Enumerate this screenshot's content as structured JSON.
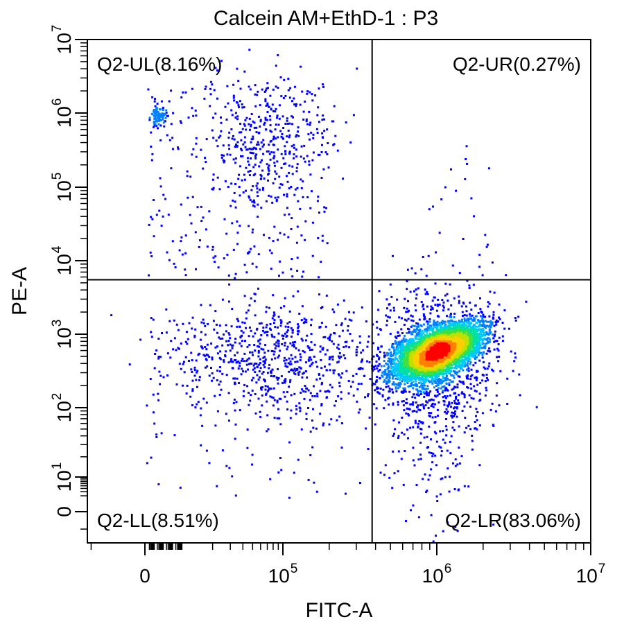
{
  "chart_data": {
    "type": "scatter",
    "title": "Calcein AM+EthD-1 : P3",
    "xlabel": "FITC-A",
    "ylabel": "PE-A",
    "x_scale": "biexponential",
    "y_scale": "biexponential",
    "xlim": [
      -40000,
      10000000
    ],
    "ylim": [
      -0.6,
      10000000
    ],
    "x_ticks": [
      {
        "value": 0,
        "base": "0",
        "exp": ""
      },
      {
        "value": 100000,
        "base": "10",
        "exp": "5"
      },
      {
        "value": 1000000,
        "base": "10",
        "exp": "6"
      },
      {
        "value": 10000000,
        "base": "10",
        "exp": "7"
      }
    ],
    "y_ticks": [
      {
        "value": 0,
        "base": "0",
        "exp": ""
      },
      {
        "value": 10,
        "base": "10",
        "exp": "1"
      },
      {
        "value": 100,
        "base": "10",
        "exp": "2"
      },
      {
        "value": 1000,
        "base": "10",
        "exp": "3"
      },
      {
        "value": 10000,
        "base": "10",
        "exp": "4"
      },
      {
        "value": 100000,
        "base": "10",
        "exp": "5"
      },
      {
        "value": 1000000,
        "base": "10",
        "exp": "6"
      },
      {
        "value": 10000000,
        "base": "10",
        "exp": "7"
      }
    ],
    "quadrants": [
      {
        "name": "Q2-UL",
        "percent": "8.16%",
        "label": "Q2-UL(8.16%)",
        "position": "top-left"
      },
      {
        "name": "Q2-UR",
        "percent": "0.27%",
        "label": "Q2-UR(0.27%)",
        "position": "top-right"
      },
      {
        "name": "Q2-LL",
        "percent": "8.51%",
        "label": "Q2-LL(8.51%)",
        "position": "bottom-left"
      },
      {
        "name": "Q2-LR",
        "percent": "83.06%",
        "label": "Q2-LR(83.06%)",
        "position": "bottom-right"
      }
    ],
    "gate": {
      "x": 380000,
      "y": 5500
    },
    "populations": [
      {
        "quadrant": "Q2-LR",
        "center": {
          "x": 1000000,
          "y": 600
        },
        "spread": "dense"
      },
      {
        "quadrant": "Q2-LL",
        "center": {
          "x": 90000,
          "y": 400
        },
        "spread": "diffuse"
      },
      {
        "quadrant": "Q2-UL",
        "center": {
          "x": 60000,
          "y": 300000
        },
        "spread": "diffuse"
      },
      {
        "quadrant": "Q2-UR",
        "center": {
          "x": 1000000,
          "y": 30000
        },
        "spread": "sparse"
      }
    ],
    "density_colors": [
      "#0000ff",
      "#0080ff",
      "#00c8ff",
      "#00e0a0",
      "#40e040",
      "#c0e000",
      "#ffd000",
      "#ff8000",
      "#ff0000"
    ],
    "grid": false,
    "legend": "none"
  }
}
